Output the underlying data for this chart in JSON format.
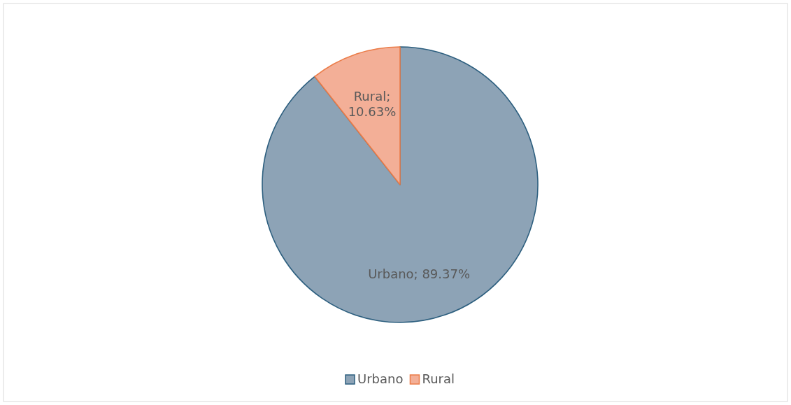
{
  "chart_data": {
    "type": "pie",
    "categories": [
      "Urbano",
      "Rural"
    ],
    "values": [
      89.37,
      10.63
    ],
    "colors": [
      "#8da3b6",
      "#f3af97"
    ],
    "value_labels": [
      "Urbano; 89.37%",
      "Rural; 10.63%"
    ],
    "legend": "bottom"
  }
}
